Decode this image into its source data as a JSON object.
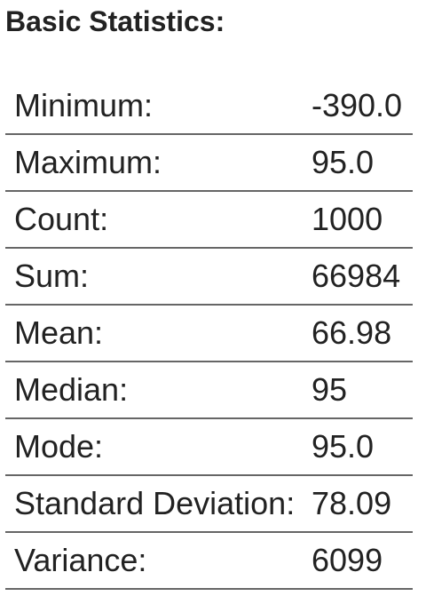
{
  "heading": "Basic Statistics:",
  "stats": [
    {
      "label": "Minimum:",
      "value": "-390.0"
    },
    {
      "label": "Maximum:",
      "value": "95.0"
    },
    {
      "label": "Count:",
      "value": "1000"
    },
    {
      "label": "Sum:",
      "value": "66984"
    },
    {
      "label": "Mean:",
      "value": "66.98"
    },
    {
      "label": "Median:",
      "value": "95"
    },
    {
      "label": "Mode:",
      "value": "95.0"
    },
    {
      "label": "Standard Deviation:",
      "value": "78.09"
    },
    {
      "label": "Variance:",
      "value": "6099"
    }
  ]
}
